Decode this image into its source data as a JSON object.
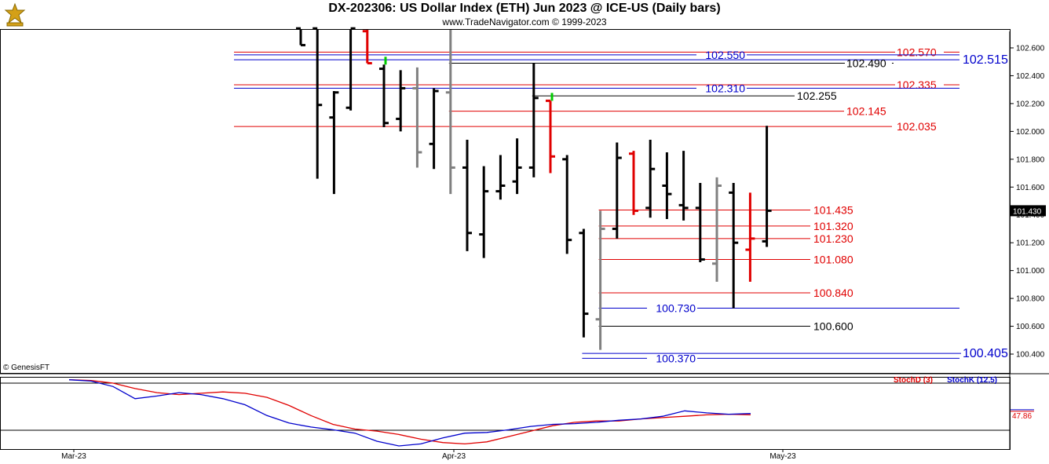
{
  "header": {
    "title": "DX-202306:  US Dollar Index (ETH) Jun 2023 @ ICE-US  (Daily bars)",
    "subtitle": "www.TradeNavigator.com © 1999-2023"
  },
  "copyright": "© GenesisFT",
  "colors": {
    "up": "#000000",
    "down": "#000000",
    "gray": "#808080",
    "red": "#e00000",
    "green": "#00cc00",
    "blue": "#0000cc"
  },
  "chart_data": [
    {
      "type": "ohlc",
      "title": "DX-202306:  US Dollar Index (ETH) Jun 2023 @ ICE-US  (Daily bars)",
      "ylim": [
        100.3,
        102.7
      ],
      "y_ticks": [
        "102.600",
        "102.400",
        "102.200",
        "102.000",
        "101.800",
        "101.600",
        "101.400",
        "101.200",
        "101.000",
        "100.800",
        "100.600",
        "100.400"
      ],
      "x_ticks": [
        "Mar-23",
        "Apr-23",
        "May-23"
      ],
      "last_price": "101.430",
      "bars": [
        {
          "o": 102.74,
          "h": 102.78,
          "l": 102.62,
          "c": 102.62,
          "color": "black"
        },
        {
          "o": 102.74,
          "h": 102.74,
          "l": 101.66,
          "c": 102.19,
          "color": "black"
        },
        {
          "o": 102.1,
          "h": 102.29,
          "l": 101.55,
          "c": 102.28,
          "color": "black"
        },
        {
          "o": 102.17,
          "h": 102.74,
          "l": 102.15,
          "c": 102.74,
          "color": "black"
        },
        {
          "o": 102.72,
          "h": 102.74,
          "l": 102.49,
          "c": 102.49,
          "color": "red"
        },
        {
          "o": 102.45,
          "h": 102.48,
          "l": 102.03,
          "c": 102.06,
          "color": "black",
          "wick": "green"
        },
        {
          "o": 102.09,
          "h": 102.44,
          "l": 102.0,
          "c": 102.31,
          "color": "black"
        },
        {
          "o": 102.31,
          "h": 102.46,
          "l": 101.74,
          "c": 101.85,
          "color": "gray"
        },
        {
          "o": 101.91,
          "h": 102.31,
          "l": 101.73,
          "c": 102.29,
          "color": "black"
        },
        {
          "o": 102.28,
          "h": 102.74,
          "l": 101.55,
          "c": 101.74,
          "color": "gray"
        },
        {
          "o": 101.74,
          "h": 101.94,
          "l": 101.14,
          "c": 101.27,
          "color": "black"
        },
        {
          "o": 101.26,
          "h": 101.75,
          "l": 101.09,
          "c": 101.57,
          "color": "black"
        },
        {
          "o": 101.57,
          "h": 101.83,
          "l": 101.51,
          "c": 101.61,
          "color": "black"
        },
        {
          "o": 101.64,
          "h": 101.95,
          "l": 101.55,
          "c": 101.74,
          "color": "black"
        },
        {
          "o": 101.74,
          "h": 102.49,
          "l": 101.67,
          "c": 102.24,
          "color": "black"
        },
        {
          "o": 102.22,
          "h": 102.22,
          "l": 101.7,
          "c": 101.82,
          "color": "red",
          "wick": "green"
        },
        {
          "o": 101.8,
          "h": 101.83,
          "l": 101.12,
          "c": 101.22,
          "color": "black"
        },
        {
          "o": 101.27,
          "h": 101.3,
          "l": 100.52,
          "c": 100.69,
          "color": "black"
        },
        {
          "o": 100.65,
          "h": 101.43,
          "l": 100.43,
          "c": 101.3,
          "color": "gray"
        },
        {
          "o": 101.3,
          "h": 101.92,
          "l": 101.23,
          "c": 101.81,
          "color": "black"
        },
        {
          "o": 101.84,
          "h": 101.86,
          "l": 101.4,
          "c": 101.43,
          "color": "red"
        },
        {
          "o": 101.45,
          "h": 101.94,
          "l": 101.38,
          "c": 101.73,
          "color": "black"
        },
        {
          "o": 101.61,
          "h": 101.85,
          "l": 101.37,
          "c": 101.55,
          "color": "black"
        },
        {
          "o": 101.47,
          "h": 101.86,
          "l": 101.36,
          "c": 101.45,
          "color": "black"
        },
        {
          "o": 101.45,
          "h": 101.63,
          "l": 101.06,
          "c": 101.08,
          "color": "black"
        },
        {
          "o": 101.05,
          "h": 101.67,
          "l": 100.92,
          "c": 101.61,
          "color": "gray"
        },
        {
          "o": 101.56,
          "h": 101.63,
          "l": 100.73,
          "c": 101.2,
          "color": "black"
        },
        {
          "o": 101.15,
          "h": 101.56,
          "l": 100.92,
          "c": 101.23,
          "color": "red"
        },
        {
          "o": 101.21,
          "h": 102.04,
          "l": 101.17,
          "c": 101.43,
          "color": "black"
        }
      ],
      "levels": [
        {
          "value": "102.570",
          "color": "red",
          "start": "left"
        },
        {
          "value": "102.550",
          "color": "blue",
          "start": "left"
        },
        {
          "value": "102.515",
          "color": "blue",
          "start": "left"
        },
        {
          "value": "102.490",
          "color": "black",
          "start": "bar9"
        },
        {
          "value": "102.335",
          "color": "red",
          "start": "left"
        },
        {
          "value": "102.310",
          "color": "blue",
          "start": "left"
        },
        {
          "value": "102.255",
          "color": "black",
          "start": "bar14"
        },
        {
          "value": "102.145",
          "color": "red",
          "start": "bar9"
        },
        {
          "value": "102.035",
          "color": "red",
          "start": "left"
        },
        {
          "value": "101.435",
          "color": "red",
          "start": "bar18"
        },
        {
          "value": "101.320",
          "color": "red",
          "start": "bar18"
        },
        {
          "value": "101.230",
          "color": "red",
          "start": "bar18"
        },
        {
          "value": "101.080",
          "color": "red",
          "start": "bar18"
        },
        {
          "value": "100.840",
          "color": "red",
          "start": "bar18"
        },
        {
          "value": "100.730",
          "color": "blue",
          "start": "bar18"
        },
        {
          "value": "100.600",
          "color": "black",
          "start": "bar18"
        },
        {
          "value": "100.405",
          "color": "blue",
          "start": "bar17"
        },
        {
          "value": "100.370",
          "color": "blue",
          "start": "bar17"
        }
      ]
    },
    {
      "type": "line",
      "legend": [
        "StochD (3)",
        "StochK (12,5)"
      ],
      "last_value": "47.86",
      "ylim": [
        0,
        100
      ],
      "series": [
        {
          "name": "StochD (3)",
          "color": "red",
          "values": [
            98,
            97,
            93,
            85,
            79,
            76,
            78,
            80,
            78,
            72,
            60,
            45,
            32,
            25,
            22,
            17,
            10,
            5,
            3,
            6,
            14,
            22,
            30,
            35,
            37,
            37,
            40,
            42,
            44,
            46,
            47,
            46
          ]
        },
        {
          "name": "StochK (12,5)",
          "color": "blue",
          "values": [
            98,
            96,
            88,
            70,
            74,
            79,
            76,
            70,
            61,
            45,
            34,
            28,
            24,
            19,
            7,
            0,
            3,
            12,
            19,
            20,
            24,
            29,
            32,
            33,
            35,
            38,
            40,
            44,
            52,
            49,
            47,
            48
          ]
        }
      ]
    }
  ]
}
